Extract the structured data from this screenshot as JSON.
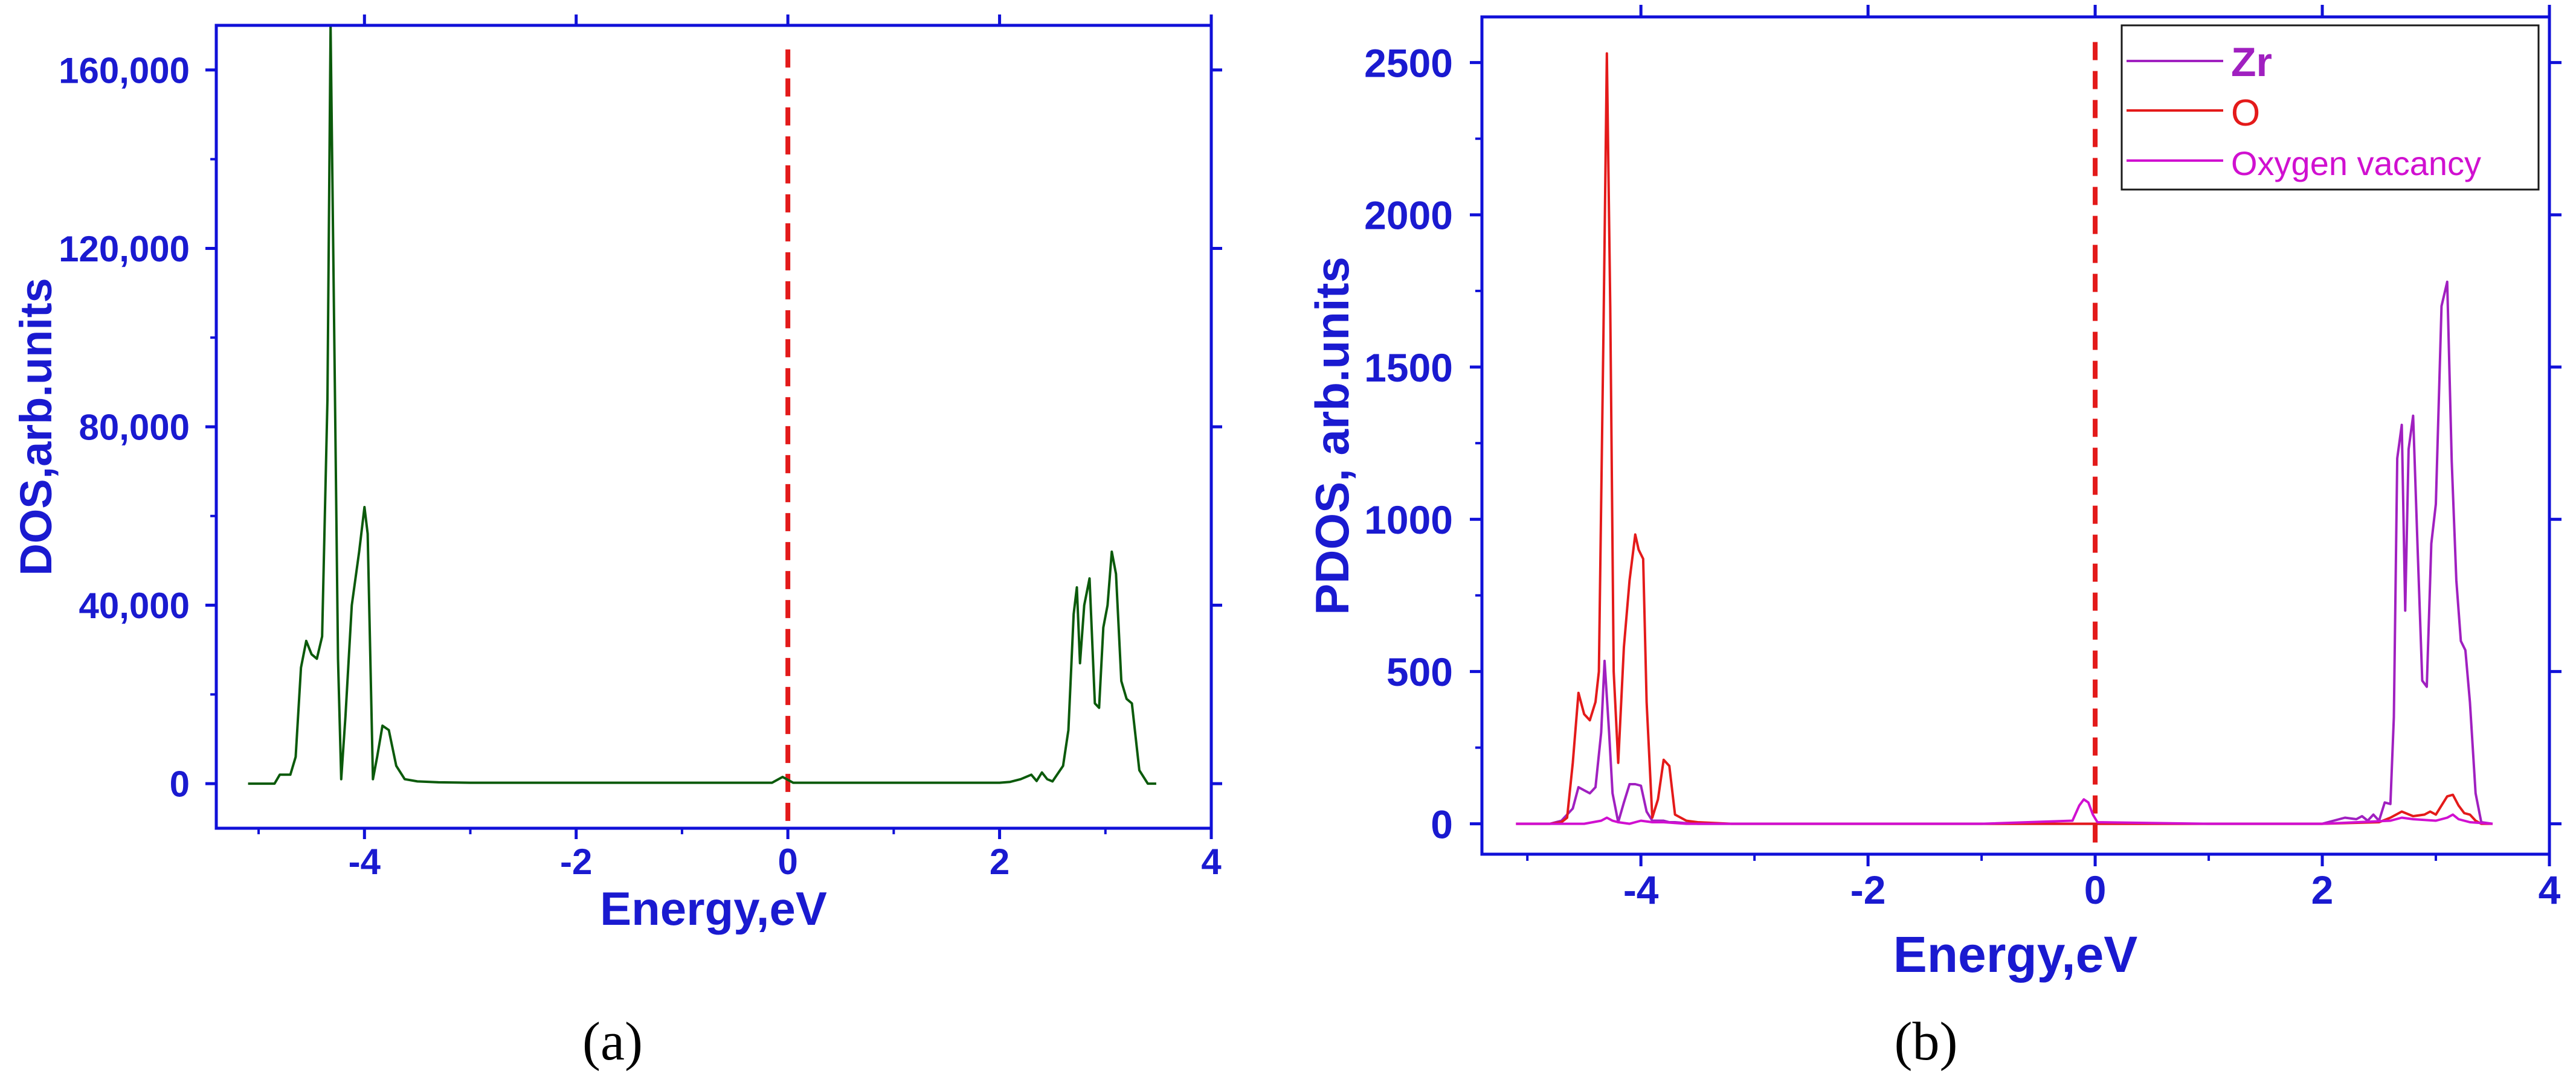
{
  "colors": {
    "axis": "#1010d8",
    "text": "#1a1ad0",
    "dos_line": "#0b5a0b",
    "fermi_line": "#e31a1a",
    "zr": "#a020c0",
    "o": "#e41a1a",
    "vacancy": "#d010d0"
  },
  "chart_data": [
    {
      "panel": "a",
      "caption": "(a)",
      "type": "line",
      "xlabel": "Energy,eV",
      "ylabel": "DOS,arb.units",
      "xlim": [
        -5.4,
        4
      ],
      "ylim": [
        -10000,
        170000
      ],
      "xticks": [
        -4,
        -2,
        0,
        2,
        4
      ],
      "xtick_labels": [
        "-4",
        "-2",
        "0",
        "2",
        "4"
      ],
      "yticks": [
        0,
        40000,
        80000,
        120000,
        160000
      ],
      "ytick_labels": [
        "0",
        "40,000",
        "80,000",
        "120,000",
        "160,000"
      ],
      "fermi_level": 0,
      "series": [
        {
          "color": "dos_line",
          "x": [
            -5.1,
            -4.85,
            -4.8,
            -4.7,
            -4.65,
            -4.6,
            -4.55,
            -4.5,
            -4.45,
            -4.4,
            -4.35,
            -4.32,
            -4.28,
            -4.25,
            -4.22,
            -4.18,
            -4.12,
            -4.05,
            -4.0,
            -3.97,
            -3.92,
            -3.88,
            -3.83,
            -3.77,
            -3.7,
            -3.62,
            -3.5,
            -3.3,
            -3.0,
            -2.0,
            -1.0,
            -0.15,
            -0.05,
            0.05,
            1.0,
            2.0,
            2.1,
            2.2,
            2.3,
            2.35,
            2.4,
            2.45,
            2.5,
            2.6,
            2.65,
            2.7,
            2.73,
            2.76,
            2.8,
            2.85,
            2.9,
            2.94,
            2.98,
            3.02,
            3.06,
            3.1,
            3.15,
            3.2,
            3.25,
            3.32,
            3.4,
            3.48
          ],
          "y": [
            0,
            0,
            2000,
            2000,
            6000,
            26000,
            32000,
            29000,
            28000,
            33000,
            86000,
            170000,
            90000,
            28000,
            1000,
            15000,
            40000,
            52000,
            62000,
            56000,
            1000,
            6000,
            13000,
            12000,
            4000,
            1000,
            500,
            300,
            200,
            200,
            200,
            200,
            1500,
            200,
            200,
            200,
            400,
            1000,
            2000,
            600,
            2500,
            1000,
            500,
            4000,
            12000,
            38000,
            44000,
            27000,
            40000,
            46000,
            18000,
            17000,
            35000,
            40000,
            52000,
            47000,
            23000,
            19000,
            18000,
            3000,
            0,
            0
          ]
        }
      ]
    },
    {
      "panel": "b",
      "caption": "(b)",
      "type": "line",
      "xlabel": "Energy,eV",
      "ylabel": "PDOS, arb.units",
      "xlim": [
        -5.4,
        4
      ],
      "ylim": [
        -100,
        2650
      ],
      "xticks": [
        -4,
        -2,
        0,
        2,
        4
      ],
      "xtick_labels": [
        "-4",
        "-2",
        "0",
        "2",
        "4"
      ],
      "yticks": [
        0,
        500,
        1000,
        1500,
        2000,
        2500
      ],
      "ytick_labels": [
        "0",
        "500",
        "1000",
        "1500",
        "2000",
        "2500"
      ],
      "fermi_level": 0,
      "legend_position": "top-right",
      "series": [
        {
          "name": "Zr",
          "color": "zr",
          "x": [
            -5.1,
            -4.8,
            -4.7,
            -4.6,
            -4.55,
            -4.5,
            -4.45,
            -4.4,
            -4.35,
            -4.32,
            -4.28,
            -4.25,
            -4.2,
            -4.15,
            -4.1,
            -4.05,
            -4.0,
            -3.95,
            -3.9,
            -3.85,
            -3.8,
            -3.75,
            -3.7,
            -3.6,
            -3.5,
            -3.2,
            -2.0,
            -1.0,
            0.0,
            1.0,
            2.0,
            2.1,
            2.2,
            2.3,
            2.35,
            2.4,
            2.45,
            2.5,
            2.55,
            2.6,
            2.63,
            2.66,
            2.7,
            2.73,
            2.76,
            2.8,
            2.84,
            2.88,
            2.92,
            2.96,
            3.0,
            3.05,
            3.1,
            3.14,
            3.18,
            3.22,
            3.26,
            3.3,
            3.35,
            3.4,
            3.5
          ],
          "y": [
            0,
            0,
            10,
            50,
            120,
            110,
            100,
            120,
            300,
            535,
            300,
            100,
            5,
            70,
            130,
            130,
            125,
            40,
            10,
            10,
            10,
            5,
            5,
            2,
            0,
            0,
            0,
            0,
            0,
            0,
            0,
            10,
            20,
            15,
            25,
            10,
            30,
            10,
            70,
            65,
            350,
            1200,
            1310,
            700,
            1230,
            1340,
            900,
            470,
            450,
            920,
            1050,
            1700,
            1780,
            1190,
            800,
            600,
            570,
            400,
            100,
            5,
            0
          ]
        },
        {
          "name": "O",
          "color": "o",
          "x": [
            -5.1,
            -4.8,
            -4.7,
            -4.65,
            -4.6,
            -4.55,
            -4.5,
            -4.45,
            -4.4,
            -4.37,
            -4.33,
            -4.3,
            -4.27,
            -4.24,
            -4.2,
            -4.15,
            -4.1,
            -4.05,
            -4.02,
            -3.98,
            -3.95,
            -3.9,
            -3.85,
            -3.8,
            -3.75,
            -3.7,
            -3.6,
            -3.5,
            -3.2,
            -2.0,
            -1.0,
            0.0,
            1.0,
            2.0,
            2.5,
            2.6,
            2.7,
            2.8,
            2.9,
            2.95,
            3.0,
            3.05,
            3.1,
            3.15,
            3.2,
            3.25,
            3.3,
            3.35,
            3.4,
            3.5
          ],
          "y": [
            0,
            0,
            5,
            20,
            200,
            430,
            360,
            340,
            400,
            500,
            1600,
            2530,
            1700,
            500,
            200,
            580,
            800,
            950,
            900,
            870,
            400,
            20,
            80,
            210,
            190,
            30,
            10,
            5,
            0,
            0,
            0,
            0,
            0,
            0,
            5,
            20,
            40,
            25,
            30,
            40,
            30,
            60,
            90,
            95,
            60,
            35,
            30,
            10,
            0,
            0
          ]
        },
        {
          "name": "Oxygen vacancy",
          "color": "vacancy",
          "x": [
            -5.1,
            -4.5,
            -4.35,
            -4.3,
            -4.25,
            -4.2,
            -4.1,
            -4.05,
            -4.0,
            -3.9,
            -3.8,
            -3.6,
            -3.0,
            -1.0,
            -0.2,
            -0.14,
            -0.1,
            -0.06,
            -0.02,
            0.02,
            1.0,
            2.0,
            2.6,
            2.7,
            2.8,
            3.0,
            3.1,
            3.15,
            3.2,
            3.3,
            3.5
          ],
          "y": [
            0,
            0,
            10,
            20,
            10,
            5,
            0,
            5,
            10,
            5,
            5,
            0,
            0,
            0,
            10,
            60,
            80,
            70,
            30,
            5,
            0,
            0,
            10,
            20,
            15,
            10,
            20,
            30,
            15,
            5,
            0
          ]
        }
      ]
    }
  ]
}
